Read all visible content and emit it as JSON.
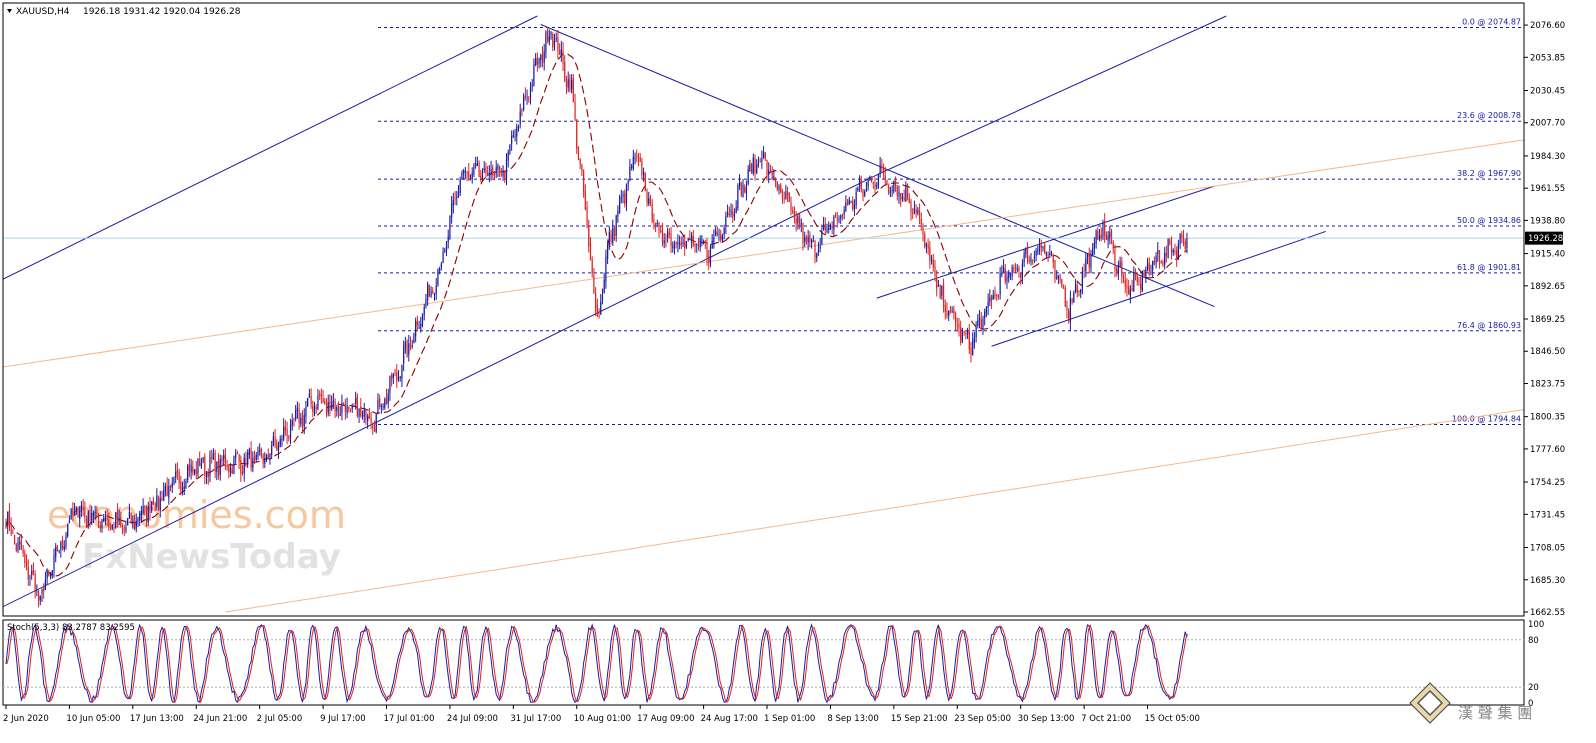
{
  "header": {
    "symbol": "XAUUSD,H4",
    "ohlc": "1926.18 1931.42 1920.04 1926.28",
    "triangle_icon": "triangle-down-icon"
  },
  "price_axis": {
    "ticks": [
      "2076.60",
      "2053.85",
      "2030.45",
      "2007.70",
      "1984.30",
      "1961.55",
      "1938.80",
      "1915.40",
      "1892.65",
      "1869.25",
      "1846.50",
      "1823.75",
      "1800.35",
      "1777.60",
      "1754.25",
      "1731.45",
      "1708.05",
      "1685.30",
      "1662.55"
    ],
    "current_price_label": "1926.28",
    "current_price": 1926.28,
    "ylim": [
      1662.55,
      2083
    ],
    "colors": {
      "axis": "#000000",
      "current_price_box": "#000000"
    }
  },
  "fibonacci": {
    "levels": [
      {
        "label": "0.0 @ 2074.87",
        "price": 2074.87
      },
      {
        "label": "23.6 @ 2008.78",
        "price": 2008.78
      },
      {
        "label": "38.2 @ 1967.90",
        "price": 1967.9
      },
      {
        "label": "50.0 @ 1934.86",
        "price": 1934.86
      },
      {
        "label": "61.8 @ 1901.81",
        "price": 1901.81
      },
      {
        "label": "76.4 @ 1860.93",
        "price": 1860.93
      },
      {
        "label": "100.0 @ 1794.84",
        "price": 1794.84
      }
    ],
    "color": "#1a1aa0"
  },
  "time_axis": {
    "labels": [
      "2 Jun 2020",
      "10 Jun 05:00",
      "17 Jun 13:00",
      "24 Jun 21:00",
      "2 Jul 05:00",
      "9 Jul 17:00",
      "17 Jul 01:00",
      "24 Jul 09:00",
      "31 Jul 17:00",
      "10 Aug 01:00",
      "17 Aug 09:00",
      "24 Aug 17:00",
      "1 Sep 01:00",
      "8 Sep 13:00",
      "15 Sep 21:00",
      "23 Sep 05:00",
      "30 Sep 13:00",
      "7 Oct 21:00",
      "15 Oct 05:00"
    ],
    "label_index": [
      0,
      37,
      74,
      111,
      148,
      185,
      222,
      259,
      296,
      333,
      370,
      407,
      444,
      481,
      518,
      555,
      592,
      629,
      666
    ]
  },
  "oscillator": {
    "title": "Stoch(5,3,3) 83.2787 83.2595",
    "ticks": [
      "100",
      "80",
      "20",
      "0"
    ],
    "levels": [
      100,
      80,
      20,
      0
    ],
    "colors": {
      "main": "#1a1aa0",
      "signal": "#dd2222",
      "levels": "#b0b0b0"
    }
  },
  "watermark": {
    "line1": "economies.com",
    "line2": "FxNewsToday"
  },
  "logo": {
    "text": "漢 聲 集 團"
  },
  "chart_data": {
    "type": "candlestick",
    "title": "XAUUSD,H4",
    "ylim": [
      1662.55,
      2083
    ],
    "bullish_color": "#1a1aa0",
    "bearish_color": "#dd2222",
    "moving_average_color": "#8b0000",
    "key_points": [
      {
        "bar": 0,
        "price": 1728
      },
      {
        "bar": 20,
        "price": 1672
      },
      {
        "bar": 40,
        "price": 1735
      },
      {
        "bar": 70,
        "price": 1722
      },
      {
        "bar": 110,
        "price": 1765
      },
      {
        "bar": 150,
        "price": 1770
      },
      {
        "bar": 180,
        "price": 1812
      },
      {
        "bar": 215,
        "price": 1800
      },
      {
        "bar": 230,
        "price": 1835
      },
      {
        "bar": 255,
        "price": 1912
      },
      {
        "bar": 265,
        "price": 1970
      },
      {
        "bar": 290,
        "price": 1972
      },
      {
        "bar": 305,
        "price": 2032
      },
      {
        "bar": 318,
        "price": 2074
      },
      {
        "bar": 330,
        "price": 2030
      },
      {
        "bar": 345,
        "price": 1868
      },
      {
        "bar": 352,
        "price": 1925
      },
      {
        "bar": 368,
        "price": 1985
      },
      {
        "bar": 380,
        "price": 1930
      },
      {
        "bar": 410,
        "price": 1918
      },
      {
        "bar": 440,
        "price": 1985
      },
      {
        "bar": 470,
        "price": 1918
      },
      {
        "bar": 495,
        "price": 1955
      },
      {
        "bar": 510,
        "price": 1972
      },
      {
        "bar": 530,
        "price": 1950
      },
      {
        "bar": 545,
        "price": 1885
      },
      {
        "bar": 562,
        "price": 1850
      },
      {
        "bar": 580,
        "price": 1895
      },
      {
        "bar": 605,
        "price": 1922
      },
      {
        "bar": 620,
        "price": 1878
      },
      {
        "bar": 640,
        "price": 1935
      },
      {
        "bar": 655,
        "price": 1888
      },
      {
        "bar": 672,
        "price": 1912
      },
      {
        "bar": 689,
        "price": 1926
      }
    ],
    "trendlines": [
      {
        "name": "upper-channel",
        "p1": {
          "bar": -4,
          "price": 1896
        },
        "p2": {
          "bar": 310,
          "price": 2083
        },
        "color": "#1a1aa0"
      },
      {
        "name": "support-trendline",
        "p1": {
          "bar": -4,
          "price": 1665
        },
        "p2": {
          "bar": 510,
          "price": 1972
        },
        "color": "#1a1aa0"
      },
      {
        "name": "support-extension",
        "p1": {
          "bar": 510,
          "price": 1972
        },
        "p2": {
          "bar": 712,
          "price": 2083
        },
        "color": "#1a1aa0"
      },
      {
        "name": "descending-resistance",
        "p1": {
          "bar": 312,
          "price": 2077
        },
        "p2": {
          "bar": 705,
          "price": 1878
        },
        "color": "#1a1aa0"
      },
      {
        "name": "upper-channel-2",
        "p1": {
          "bar": 508,
          "price": 1884
        },
        "p2": {
          "bar": 705,
          "price": 1963
        },
        "color": "#1a1aa0"
      },
      {
        "name": "lower-channel-2",
        "p1": {
          "bar": 575,
          "price": 1850
        },
        "p2": {
          "bar": 770,
          "price": 1931
        },
        "color": "#1a1aa0"
      },
      {
        "name": "long-term-channel-upper",
        "p1": {
          "bar": -4,
          "price": 1835
        },
        "p2": {
          "bar": 910,
          "price": 2000
        },
        "color": "#f5b88a"
      },
      {
        "name": "long-term-channel-lower",
        "p1": {
          "bar": 128,
          "price": 1662.55
        },
        "p2": {
          "bar": 910,
          "price": 1810
        },
        "color": "#f5b88a"
      }
    ]
  }
}
